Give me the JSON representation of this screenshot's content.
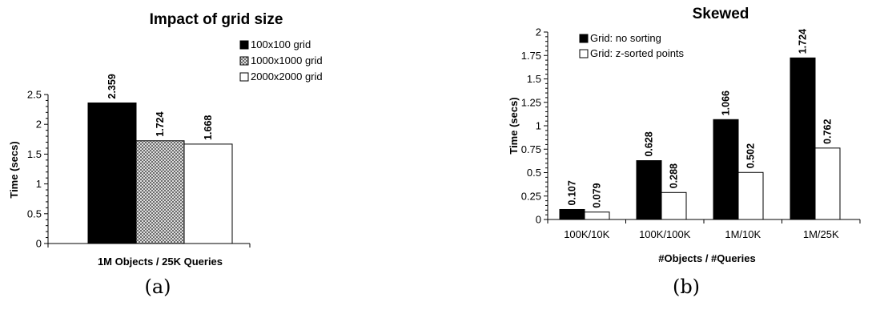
{
  "chart_data": [
    {
      "type": "bar",
      "title": "Impact of grid size",
      "ylabel": "Time (secs)",
      "xlabel": "1M Objects / 25K Queries",
      "ylim": [
        0,
        2.5
      ],
      "yticks": [
        "0",
        "0.5",
        "1",
        "1.5",
        "2",
        "2.5"
      ],
      "categories": [
        ""
      ],
      "series": [
        {
          "name": "100x100 grid",
          "values": [
            2.359
          ],
          "labels": [
            "2.359"
          ],
          "color": "#000000",
          "pattern": "solid"
        },
        {
          "name": "1000x1000 grid",
          "values": [
            1.724
          ],
          "labels": [
            "1.724"
          ],
          "color": "#bdbdbd",
          "pattern": "crosshatch"
        },
        {
          "name": "2000x2000 grid",
          "values": [
            1.668
          ],
          "labels": [
            "1.668"
          ],
          "color": "#ffffff",
          "pattern": "none"
        }
      ],
      "legend": "top-right",
      "caption": "(a)"
    },
    {
      "type": "bar",
      "title": "Skewed",
      "ylabel": "Time (secs)",
      "xlabel": "#Objects / #Queries",
      "ylim": [
        0,
        2
      ],
      "yticks": [
        "0",
        "0.25",
        "0.5",
        "0.75",
        "1",
        "1.25",
        "1.5",
        "1.75",
        "2"
      ],
      "categories": [
        "100K/10K",
        "100K/100K",
        "1M/10K",
        "1M/25K"
      ],
      "series": [
        {
          "name": "Grid: no sorting",
          "values": [
            0.107,
            0.628,
            1.066,
            1.724
          ],
          "labels": [
            "0.107",
            "0.628",
            "1.066",
            "1.724"
          ],
          "color": "#000000",
          "pattern": "solid"
        },
        {
          "name": "Grid: z-sorted points",
          "values": [
            0.079,
            0.288,
            0.502,
            0.762
          ],
          "labels": [
            "0.079",
            "0.288",
            "0.502",
            "0.762"
          ],
          "color": "#ffffff",
          "pattern": "none"
        }
      ],
      "legend": "top-left",
      "caption": "(b)"
    }
  ]
}
